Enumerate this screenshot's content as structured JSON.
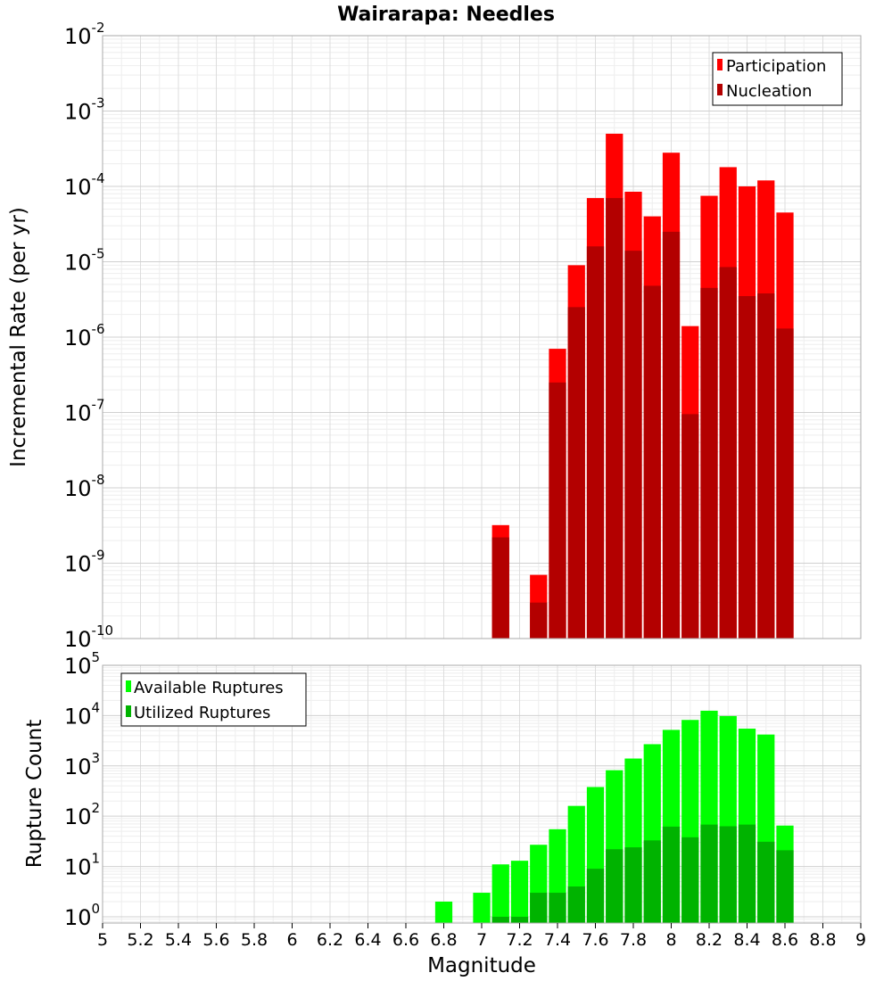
{
  "title": "Wairarapa: Needles",
  "chart_data": [
    {
      "type": "bar",
      "panel": "top",
      "ylabel": "Incremental Rate (per yr)",
      "yscale": "log",
      "ylim": [
        1e-10,
        0.01
      ],
      "ytick_exponents": [
        -10,
        -9,
        -8,
        -7,
        -6,
        -5,
        -4,
        -3,
        -2
      ],
      "xlim": [
        5,
        9
      ],
      "grid": true,
      "legend_position": "top-right",
      "bin_centers": [
        7.1,
        7.3,
        7.4,
        7.5,
        7.6,
        7.7,
        7.8,
        7.9,
        8.0,
        8.1,
        8.2,
        8.3,
        8.4,
        8.5,
        8.6
      ],
      "series": [
        {
          "name": "Participation",
          "color": "#ff0000",
          "values": [
            3.2e-09,
            7e-10,
            7e-07,
            9e-06,
            7e-05,
            0.0005,
            8.5e-05,
            4e-05,
            0.00028,
            1.4e-06,
            7.5e-05,
            0.00018,
            0.0001,
            0.00012,
            4.5e-05
          ]
        },
        {
          "name": "Nucleation",
          "color": "#b30000",
          "values": [
            2.2e-09,
            3e-10,
            2.5e-07,
            2.5e-06,
            1.6e-05,
            7e-05,
            1.4e-05,
            4.8e-06,
            2.5e-05,
            9.5e-08,
            4.5e-06,
            8.5e-06,
            3.5e-06,
            3.8e-06,
            1.3e-06
          ]
        }
      ]
    },
    {
      "type": "bar",
      "panel": "bottom",
      "ylabel": "Rupture Count",
      "xlabel": "Magnitude",
      "yscale": "log",
      "ylim": [
        0.75,
        100000.0
      ],
      "ytick_exponents": [
        0,
        1,
        2,
        3,
        4,
        5
      ],
      "xlim": [
        5,
        9
      ],
      "xticks": [
        "5",
        "5.2",
        "5.4",
        "5.6",
        "5.8",
        "6",
        "6.2",
        "6.4",
        "6.6",
        "6.8",
        "7",
        "7.2",
        "7.4",
        "7.6",
        "7.8",
        "8",
        "8.2",
        "8.4",
        "8.6",
        "8.8",
        "9"
      ],
      "grid": true,
      "legend_position": "top-left",
      "bin_centers": [
        6.8,
        7.0,
        7.1,
        7.2,
        7.3,
        7.4,
        7.5,
        7.6,
        7.7,
        7.8,
        7.9,
        8.0,
        8.1,
        8.2,
        8.3,
        8.4,
        8.5,
        8.6
      ],
      "series": [
        {
          "name": "Available Ruptures",
          "color": "#00ff00",
          "values": [
            2,
            3,
            11,
            13,
            27,
            55,
            160,
            380,
            820,
            1400,
            2700,
            5200,
            8200,
            12500,
            9800,
            5500,
            4200,
            65
          ]
        },
        {
          "name": "Utilized Ruptures",
          "color": "#00b300",
          "values": [
            0,
            0,
            1,
            1,
            3,
            3,
            4,
            9,
            22,
            24,
            33,
            62,
            38,
            68,
            63,
            68,
            31,
            21
          ]
        }
      ]
    }
  ]
}
